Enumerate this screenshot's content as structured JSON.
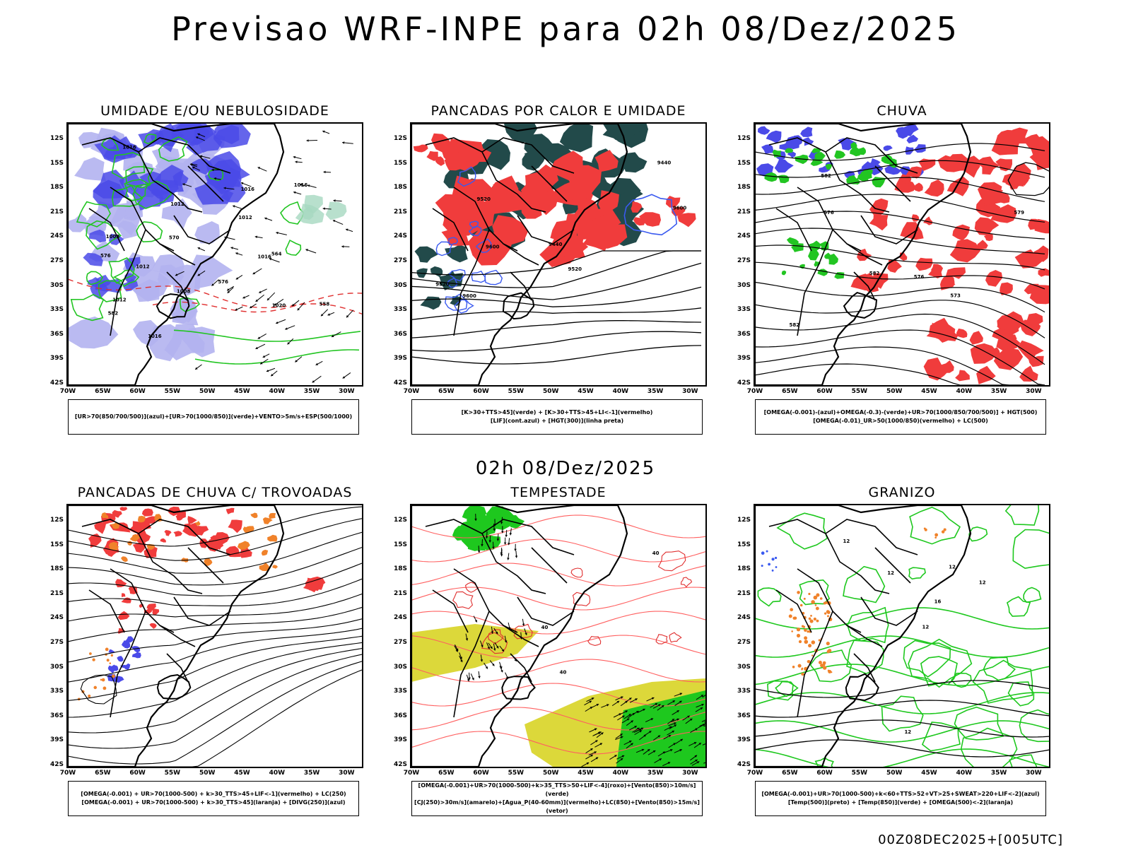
{
  "header": {
    "title": "Previsao WRF-INPE  para 02h 08/Dez/2025",
    "mid_time": "02h 08/Dez/2025",
    "footer": "00Z08DEC2025+[005UTC]"
  },
  "axes": {
    "lat_labels": [
      "12S",
      "15S",
      "18S",
      "21S",
      "24S",
      "27S",
      "30S",
      "33S",
      "36S",
      "39S",
      "42S"
    ],
    "lon_labels": [
      "70W",
      "65W",
      "60W",
      "55W",
      "50W",
      "45W",
      "40W",
      "35W",
      "30W"
    ]
  },
  "colors": {
    "blue": "#4a4ae8",
    "lightblue": "#b3b3f0",
    "green": "#22c522",
    "red": "#f03c3c",
    "darkgreen": "#224a4a",
    "orange": "#f0822a",
    "yellow": "#dcd83a",
    "brightgreen": "#1ec81e"
  },
  "panels": [
    {
      "id": "umidade",
      "title": "UMIDADE E/OU NEBULOSIDADE",
      "legend_lines": [
        "[UR>70(850/700/500)](azul)+[UR>70(1000/850)](verde)+VENTO>5m/s+ESP(500/1000)"
      ],
      "contour_labels": [
        "1012",
        "1008",
        "1012",
        "1012",
        "1016",
        "1008",
        "1012",
        "1016",
        "1020",
        "1016",
        "1016",
        "1016",
        "570",
        "576",
        "564",
        "582",
        "576",
        "558"
      ]
    },
    {
      "id": "pancadas-calor",
      "title": "PANCADAS POR CALOR E UMIDADE",
      "legend_lines": [
        "[K>30+TTS>45](verde) + [K>30+TTS>45+LI<-1](vermelho)",
        "[LIF](cont.azul) + [HGT(300)](linha preta)"
      ],
      "contour_labels": [
        "9600",
        "9600",
        "9600",
        "9520",
        "9520",
        "9440",
        "9440",
        "9520"
      ]
    },
    {
      "id": "chuva",
      "title": "CHUVA",
      "legend_lines": [
        "[OMEGA(-0.001)-(azul)+OMEGA(-0.3)-(verde)+UR>70(1000/850/700/500)] + HGT(500)",
        "[OMEGA(-0.01)_UR>50(1000/850)(vermelho) + LC(500)"
      ],
      "contour_labels": [
        "582",
        "582",
        "576",
        "579",
        "576",
        "573",
        "582"
      ]
    },
    {
      "id": "pancadas-trovoadas",
      "title": "PANCADAS DE CHUVA C/ TROVOADAS",
      "legend_lines": [
        "[OMEGA(-0.001) + UR>70(1000-500) + k>30_TTS>45+LIF<-1](vermelho) + LC(250)",
        "[OMEGA(-0.001) + UR>70(1000-500) + k>30_TTS>45](laranja) + [DIVG(250)](azul)"
      ],
      "contour_labels": []
    },
    {
      "id": "tempestade",
      "title": "TEMPESTADE",
      "legend_lines": [
        "[OMEGA(-0.001)+UR>70(1000-500)+k>35_TTS>50+LIF<-4](roxo)+[Vento(850)>10m/s](verde)",
        "[CJ(250)>30m/s](amarelo)+[Agua_P(40-60mm)](vermelho)+LC(850)+[Vento(850)>15m/s](vetor)"
      ],
      "contour_labels": [
        "40",
        "40",
        "40"
      ]
    },
    {
      "id": "granizo",
      "title": "GRANIZO",
      "legend_lines": [
        "[OMEGA(-0.001)+UR>70(1000-500)+k<60+TTS>52+VT>25+SWEAT>220+LIF<-2](azul)",
        "[Temp(500)](preto) + [Temp(850)](verde) + [OMEGA(500)<-2](laranja)"
      ],
      "contour_labels": [
        "12",
        "12",
        "12",
        "12",
        "16",
        "12",
        "12"
      ]
    }
  ]
}
